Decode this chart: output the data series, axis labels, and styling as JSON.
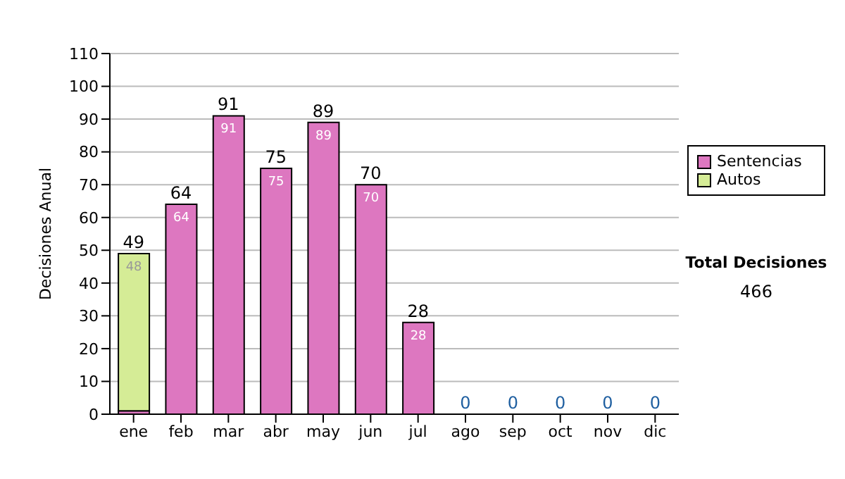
{
  "chart_data": {
    "type": "bar",
    "stacked": true,
    "ylabel": "Decisiones Anual",
    "categories": [
      "ene",
      "feb",
      "mar",
      "abr",
      "may",
      "jun",
      "jul",
      "ago",
      "sep",
      "oct",
      "nov",
      "dic"
    ],
    "series": [
      {
        "name": "Sentencias",
        "color": "#dd77c0",
        "values": [
          1,
          64,
          91,
          75,
          89,
          70,
          28,
          0,
          0,
          0,
          0,
          0
        ],
        "value_labels": [
          null,
          "64",
          "91",
          "75",
          "89",
          "70",
          "28",
          null,
          null,
          null,
          null,
          null
        ]
      },
      {
        "name": "Autos",
        "color": "#d5ec96",
        "values": [
          48,
          0,
          0,
          0,
          0,
          0,
          0,
          0,
          0,
          0,
          0,
          0
        ],
        "value_labels": [
          "48",
          null,
          null,
          null,
          null,
          null,
          null,
          null,
          null,
          null,
          null,
          null
        ]
      }
    ],
    "totals": [
      "49",
      "64",
      "91",
      "75",
      "89",
      "70",
      "28",
      "0",
      "0",
      "0",
      "0",
      "0"
    ],
    "ylim": [
      0,
      110
    ],
    "yticks": [
      0,
      10,
      20,
      30,
      40,
      50,
      60,
      70,
      80,
      90,
      100,
      110
    ],
    "grid": "y",
    "legend": "right",
    "annotations": [
      "Total Decisiones",
      "466"
    ]
  }
}
